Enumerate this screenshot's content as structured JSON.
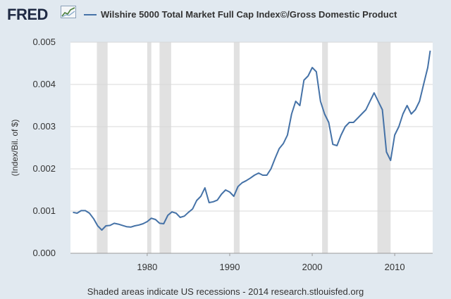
{
  "header": {
    "logo_text": "FRED",
    "logo_icon": "line-chart-icon"
  },
  "chart_data": {
    "type": "line",
    "title": "",
    "ylabel": "(Index/Bil. of $)",
    "xlabel": "",
    "xlim": [
      1970.7,
      2014.6
    ],
    "ylim": [
      0,
      0.005
    ],
    "yticks": [
      "0.000",
      "0.001",
      "0.002",
      "0.003",
      "0.004",
      "0.005"
    ],
    "xticks": [
      "1980",
      "1990",
      "2000",
      "2010"
    ],
    "grid": true,
    "legend_position": "top",
    "series": [
      {
        "name": "Wilshire 5000 Total Market Full Cap Index©/Gross Domestic Product",
        "color": "#4572a7",
        "x": [
          1971.0,
          1971.5,
          1972.0,
          1972.5,
          1973.0,
          1973.5,
          1974.0,
          1974.5,
          1975.0,
          1975.5,
          1976.0,
          1976.5,
          1977.0,
          1977.5,
          1978.0,
          1978.5,
          1979.0,
          1979.5,
          1980.0,
          1980.5,
          1981.0,
          1981.5,
          1982.0,
          1982.5,
          1983.0,
          1983.5,
          1984.0,
          1984.5,
          1985.0,
          1985.5,
          1986.0,
          1986.5,
          1987.0,
          1987.5,
          1988.0,
          1988.5,
          1989.0,
          1989.5,
          1990.0,
          1990.5,
          1991.0,
          1991.5,
          1992.0,
          1992.5,
          1993.0,
          1993.5,
          1994.0,
          1994.5,
          1995.0,
          1995.5,
          1996.0,
          1996.5,
          1997.0,
          1997.5,
          1998.0,
          1998.5,
          1999.0,
          1999.5,
          2000.0,
          2000.5,
          2001.0,
          2001.5,
          2002.0,
          2002.5,
          2003.0,
          2003.5,
          2004.0,
          2004.5,
          2005.0,
          2005.5,
          2006.0,
          2006.5,
          2007.0,
          2007.5,
          2008.0,
          2008.5,
          2009.0,
          2009.5,
          2010.0,
          2010.5,
          2011.0,
          2011.5,
          2012.0,
          2012.5,
          2013.0,
          2013.5,
          2014.0,
          2014.3
        ],
        "values": [
          0.00097,
          0.00095,
          0.00101,
          0.00101,
          0.00095,
          0.00082,
          0.00065,
          0.00055,
          0.00065,
          0.00066,
          0.00071,
          0.00069,
          0.00066,
          0.00063,
          0.00062,
          0.00065,
          0.00067,
          0.0007,
          0.00075,
          0.00083,
          0.0008,
          0.00071,
          0.0007,
          0.0009,
          0.00098,
          0.00095,
          0.00085,
          0.00088,
          0.00097,
          0.00105,
          0.00125,
          0.00135,
          0.00155,
          0.0012,
          0.00122,
          0.00126,
          0.0014,
          0.0015,
          0.00145,
          0.00135,
          0.00158,
          0.00167,
          0.00172,
          0.00178,
          0.00185,
          0.0019,
          0.00185,
          0.00185,
          0.002,
          0.00225,
          0.00248,
          0.0026,
          0.0028,
          0.0033,
          0.0036,
          0.0035,
          0.0041,
          0.0042,
          0.0044,
          0.0043,
          0.0036,
          0.0033,
          0.0031,
          0.00258,
          0.00255,
          0.0028,
          0.003,
          0.0031,
          0.0031,
          0.0032,
          0.0033,
          0.0034,
          0.0036,
          0.0038,
          0.0036,
          0.0034,
          0.0024,
          0.0022,
          0.0028,
          0.003,
          0.0033,
          0.0035,
          0.0033,
          0.0034,
          0.0036,
          0.004,
          0.0044,
          0.0048
        ]
      }
    ],
    "recessions": [
      [
        1973.9,
        1975.2
      ],
      [
        1980.0,
        1980.5
      ],
      [
        1981.5,
        1982.9
      ],
      [
        1990.5,
        1991.2
      ],
      [
        2001.2,
        2001.9
      ],
      [
        2007.9,
        2009.5
      ]
    ]
  },
  "footer": {
    "text": "Shaded areas indicate US recessions - 2014 research.stlouisfed.org"
  }
}
